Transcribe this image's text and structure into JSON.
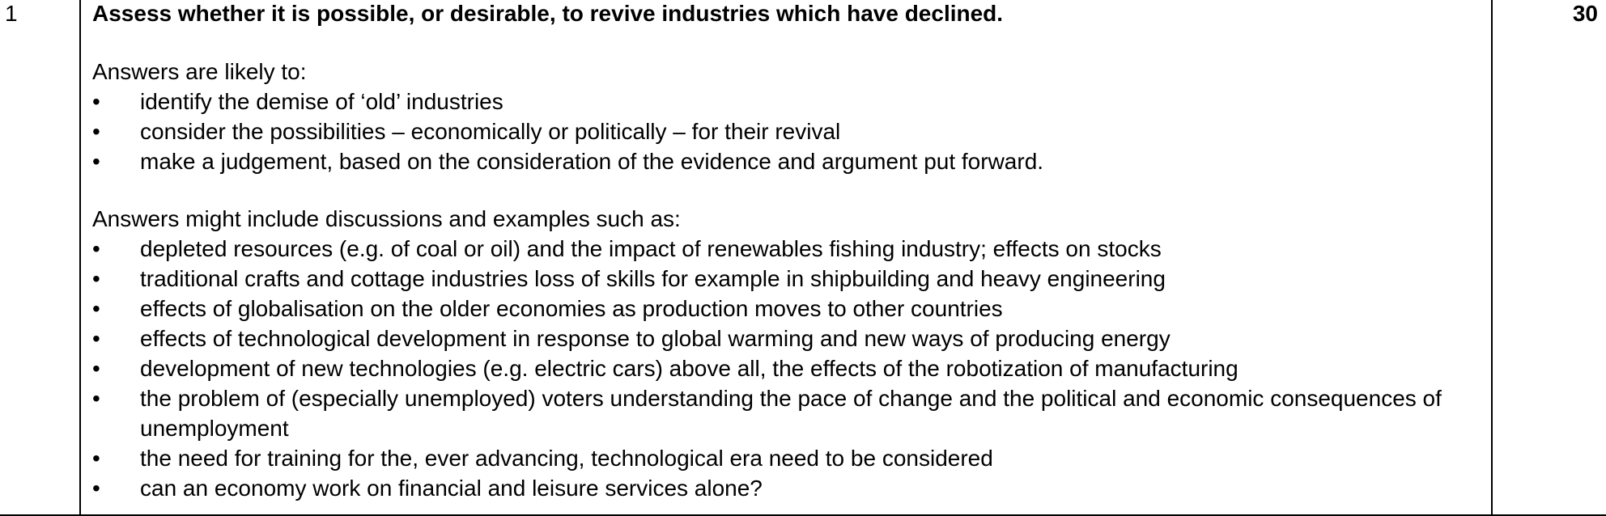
{
  "row": {
    "number": "1",
    "question": "Assess whether it is possible, or desirable, to revive industries which have declined.",
    "marks": "30",
    "intro_1": "Answers are likely to:",
    "bullets_1": [
      "identify the demise of ‘old’ industries",
      "consider the possibilities – economically or politically – for their revival",
      "make a judgement, based on the consideration of the evidence and argument put forward."
    ],
    "intro_2": "Answers might include discussions and examples such as:",
    "bullets_2": [
      "depleted resources (e.g. of coal or oil) and the impact of renewables fishing industry; effects on stocks",
      "traditional crafts and cottage industries loss of skills for example in shipbuilding and heavy engineering",
      "effects of globalisation on the older economies as production moves to other countries",
      "effects of technological development in response to global warming and new ways of producing energy",
      "development of new technologies (e.g. electric cars) above all, the effects of the robotization of manufacturing",
      "the problem of (especially unemployed) voters understanding the pace of change and the political and economic consequences of unemployment",
      "the need for training for the, ever advancing, technological era need to be considered",
      "can an economy work on financial and leisure services alone?"
    ]
  }
}
